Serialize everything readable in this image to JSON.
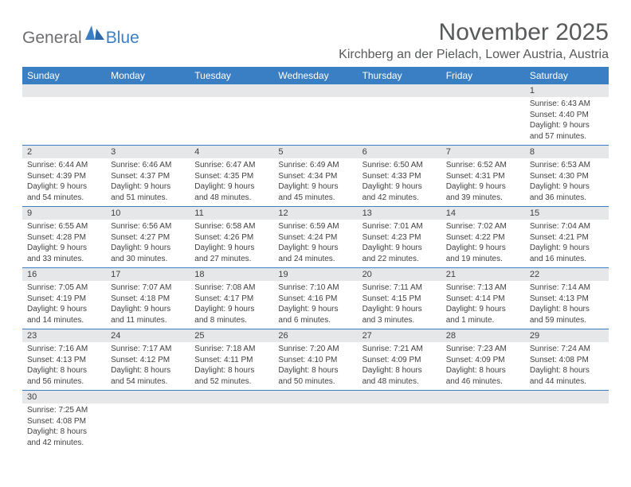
{
  "logo": {
    "general": "General",
    "blue": "Blue"
  },
  "title": "November 2025",
  "location": "Kirchberg an der Pielach, Lower Austria, Austria",
  "day_headers": [
    "Sunday",
    "Monday",
    "Tuesday",
    "Wednesday",
    "Thursday",
    "Friday",
    "Saturday"
  ],
  "colors": {
    "header_bg": "#3a7fc4",
    "header_text": "#ffffff",
    "daynum_bg": "#e6e7e8",
    "text": "#414042",
    "title_text": "#58595b",
    "logo_gray": "#6d6e71",
    "row_border": "#3a7fc4"
  },
  "weeks": [
    {
      "days": [
        {
          "n": "",
          "sr": "",
          "ss": "",
          "dl1": "",
          "dl2": ""
        },
        {
          "n": "",
          "sr": "",
          "ss": "",
          "dl1": "",
          "dl2": ""
        },
        {
          "n": "",
          "sr": "",
          "ss": "",
          "dl1": "",
          "dl2": ""
        },
        {
          "n": "",
          "sr": "",
          "ss": "",
          "dl1": "",
          "dl2": ""
        },
        {
          "n": "",
          "sr": "",
          "ss": "",
          "dl1": "",
          "dl2": ""
        },
        {
          "n": "",
          "sr": "",
          "ss": "",
          "dl1": "",
          "dl2": ""
        },
        {
          "n": "1",
          "sr": "Sunrise: 6:43 AM",
          "ss": "Sunset: 4:40 PM",
          "dl1": "Daylight: 9 hours",
          "dl2": "and 57 minutes."
        }
      ]
    },
    {
      "days": [
        {
          "n": "2",
          "sr": "Sunrise: 6:44 AM",
          "ss": "Sunset: 4:39 PM",
          "dl1": "Daylight: 9 hours",
          "dl2": "and 54 minutes."
        },
        {
          "n": "3",
          "sr": "Sunrise: 6:46 AM",
          "ss": "Sunset: 4:37 PM",
          "dl1": "Daylight: 9 hours",
          "dl2": "and 51 minutes."
        },
        {
          "n": "4",
          "sr": "Sunrise: 6:47 AM",
          "ss": "Sunset: 4:35 PM",
          "dl1": "Daylight: 9 hours",
          "dl2": "and 48 minutes."
        },
        {
          "n": "5",
          "sr": "Sunrise: 6:49 AM",
          "ss": "Sunset: 4:34 PM",
          "dl1": "Daylight: 9 hours",
          "dl2": "and 45 minutes."
        },
        {
          "n": "6",
          "sr": "Sunrise: 6:50 AM",
          "ss": "Sunset: 4:33 PM",
          "dl1": "Daylight: 9 hours",
          "dl2": "and 42 minutes."
        },
        {
          "n": "7",
          "sr": "Sunrise: 6:52 AM",
          "ss": "Sunset: 4:31 PM",
          "dl1": "Daylight: 9 hours",
          "dl2": "and 39 minutes."
        },
        {
          "n": "8",
          "sr": "Sunrise: 6:53 AM",
          "ss": "Sunset: 4:30 PM",
          "dl1": "Daylight: 9 hours",
          "dl2": "and 36 minutes."
        }
      ]
    },
    {
      "days": [
        {
          "n": "9",
          "sr": "Sunrise: 6:55 AM",
          "ss": "Sunset: 4:28 PM",
          "dl1": "Daylight: 9 hours",
          "dl2": "and 33 minutes."
        },
        {
          "n": "10",
          "sr": "Sunrise: 6:56 AM",
          "ss": "Sunset: 4:27 PM",
          "dl1": "Daylight: 9 hours",
          "dl2": "and 30 minutes."
        },
        {
          "n": "11",
          "sr": "Sunrise: 6:58 AM",
          "ss": "Sunset: 4:26 PM",
          "dl1": "Daylight: 9 hours",
          "dl2": "and 27 minutes."
        },
        {
          "n": "12",
          "sr": "Sunrise: 6:59 AM",
          "ss": "Sunset: 4:24 PM",
          "dl1": "Daylight: 9 hours",
          "dl2": "and 24 minutes."
        },
        {
          "n": "13",
          "sr": "Sunrise: 7:01 AM",
          "ss": "Sunset: 4:23 PM",
          "dl1": "Daylight: 9 hours",
          "dl2": "and 22 minutes."
        },
        {
          "n": "14",
          "sr": "Sunrise: 7:02 AM",
          "ss": "Sunset: 4:22 PM",
          "dl1": "Daylight: 9 hours",
          "dl2": "and 19 minutes."
        },
        {
          "n": "15",
          "sr": "Sunrise: 7:04 AM",
          "ss": "Sunset: 4:21 PM",
          "dl1": "Daylight: 9 hours",
          "dl2": "and 16 minutes."
        }
      ]
    },
    {
      "days": [
        {
          "n": "16",
          "sr": "Sunrise: 7:05 AM",
          "ss": "Sunset: 4:19 PM",
          "dl1": "Daylight: 9 hours",
          "dl2": "and 14 minutes."
        },
        {
          "n": "17",
          "sr": "Sunrise: 7:07 AM",
          "ss": "Sunset: 4:18 PM",
          "dl1": "Daylight: 9 hours",
          "dl2": "and 11 minutes."
        },
        {
          "n": "18",
          "sr": "Sunrise: 7:08 AM",
          "ss": "Sunset: 4:17 PM",
          "dl1": "Daylight: 9 hours",
          "dl2": "and 8 minutes."
        },
        {
          "n": "19",
          "sr": "Sunrise: 7:10 AM",
          "ss": "Sunset: 4:16 PM",
          "dl1": "Daylight: 9 hours",
          "dl2": "and 6 minutes."
        },
        {
          "n": "20",
          "sr": "Sunrise: 7:11 AM",
          "ss": "Sunset: 4:15 PM",
          "dl1": "Daylight: 9 hours",
          "dl2": "and 3 minutes."
        },
        {
          "n": "21",
          "sr": "Sunrise: 7:13 AM",
          "ss": "Sunset: 4:14 PM",
          "dl1": "Daylight: 9 hours",
          "dl2": "and 1 minute."
        },
        {
          "n": "22",
          "sr": "Sunrise: 7:14 AM",
          "ss": "Sunset: 4:13 PM",
          "dl1": "Daylight: 8 hours",
          "dl2": "and 59 minutes."
        }
      ]
    },
    {
      "days": [
        {
          "n": "23",
          "sr": "Sunrise: 7:16 AM",
          "ss": "Sunset: 4:13 PM",
          "dl1": "Daylight: 8 hours",
          "dl2": "and 56 minutes."
        },
        {
          "n": "24",
          "sr": "Sunrise: 7:17 AM",
          "ss": "Sunset: 4:12 PM",
          "dl1": "Daylight: 8 hours",
          "dl2": "and 54 minutes."
        },
        {
          "n": "25",
          "sr": "Sunrise: 7:18 AM",
          "ss": "Sunset: 4:11 PM",
          "dl1": "Daylight: 8 hours",
          "dl2": "and 52 minutes."
        },
        {
          "n": "26",
          "sr": "Sunrise: 7:20 AM",
          "ss": "Sunset: 4:10 PM",
          "dl1": "Daylight: 8 hours",
          "dl2": "and 50 minutes."
        },
        {
          "n": "27",
          "sr": "Sunrise: 7:21 AM",
          "ss": "Sunset: 4:09 PM",
          "dl1": "Daylight: 8 hours",
          "dl2": "and 48 minutes."
        },
        {
          "n": "28",
          "sr": "Sunrise: 7:23 AM",
          "ss": "Sunset: 4:09 PM",
          "dl1": "Daylight: 8 hours",
          "dl2": "and 46 minutes."
        },
        {
          "n": "29",
          "sr": "Sunrise: 7:24 AM",
          "ss": "Sunset: 4:08 PM",
          "dl1": "Daylight: 8 hours",
          "dl2": "and 44 minutes."
        }
      ]
    },
    {
      "days": [
        {
          "n": "30",
          "sr": "Sunrise: 7:25 AM",
          "ss": "Sunset: 4:08 PM",
          "dl1": "Daylight: 8 hours",
          "dl2": "and 42 minutes."
        },
        {
          "n": "",
          "sr": "",
          "ss": "",
          "dl1": "",
          "dl2": ""
        },
        {
          "n": "",
          "sr": "",
          "ss": "",
          "dl1": "",
          "dl2": ""
        },
        {
          "n": "",
          "sr": "",
          "ss": "",
          "dl1": "",
          "dl2": ""
        },
        {
          "n": "",
          "sr": "",
          "ss": "",
          "dl1": "",
          "dl2": ""
        },
        {
          "n": "",
          "sr": "",
          "ss": "",
          "dl1": "",
          "dl2": ""
        },
        {
          "n": "",
          "sr": "",
          "ss": "",
          "dl1": "",
          "dl2": ""
        }
      ]
    }
  ]
}
